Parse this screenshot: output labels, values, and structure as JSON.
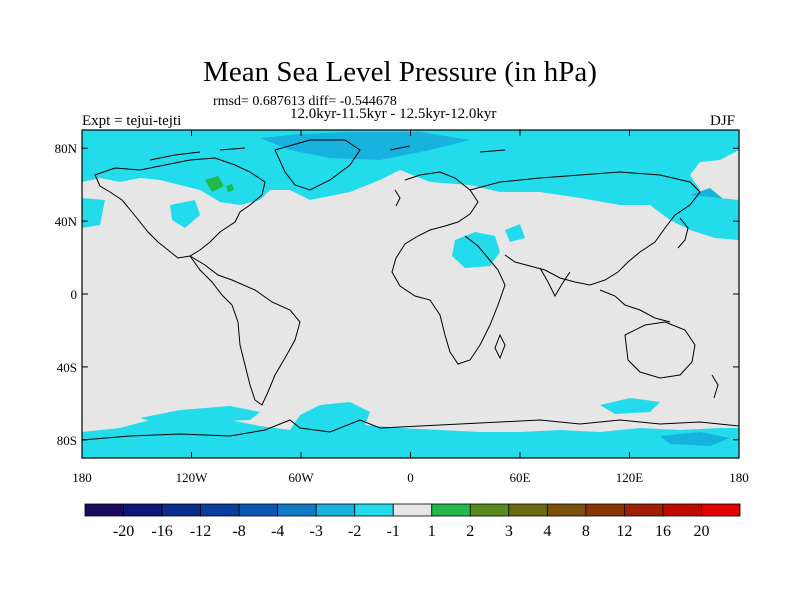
{
  "title": "Mean Sea Level Pressure (in hPa)",
  "stats_line": "rmsd= 0.687613 diff= -0.544678",
  "period_line": "12.0kyr-11.5kyr - 12.5kyr-12.0kyr",
  "experiment": "Expt = tejui-tejti",
  "season": "DJF",
  "lat_labels": [
    "80N",
    "40N",
    "0",
    "40S",
    "80S"
  ],
  "lat_values": [
    80,
    40,
    0,
    -40,
    -80
  ],
  "lon_labels": [
    "180",
    "120W",
    "60W",
    "0",
    "60E",
    "120E",
    "180"
  ],
  "lon_values": [
    -180,
    -120,
    -60,
    0,
    60,
    120,
    180
  ],
  "colorbar": {
    "labels": [
      "-20",
      "-16",
      "-12",
      "-8",
      "-4",
      "-3",
      "-2",
      "-1",
      "1",
      "2",
      "3",
      "4",
      "8",
      "12",
      "16",
      "20"
    ],
    "colors": [
      "#1a0a5a",
      "#0c1878",
      "#0a2c8c",
      "#0a3fa0",
      "#0b56b4",
      "#0f7cc8",
      "#18b2de",
      "#22dcec",
      "#e6e6e6",
      "#22b84a",
      "#5a8a1e",
      "#6a6a12",
      "#7a500c",
      "#8a3408",
      "#a01e04",
      "#c00a00",
      "#e20000"
    ]
  },
  "colors": {
    "background_field": "#e6e6e6",
    "anomaly_minus1_to_minus2": "#22dcec",
    "anomaly_minus2_to_minus3": "#18b2de",
    "anomaly_1_to_2": "#22b84a",
    "coastline": "#000000"
  }
}
